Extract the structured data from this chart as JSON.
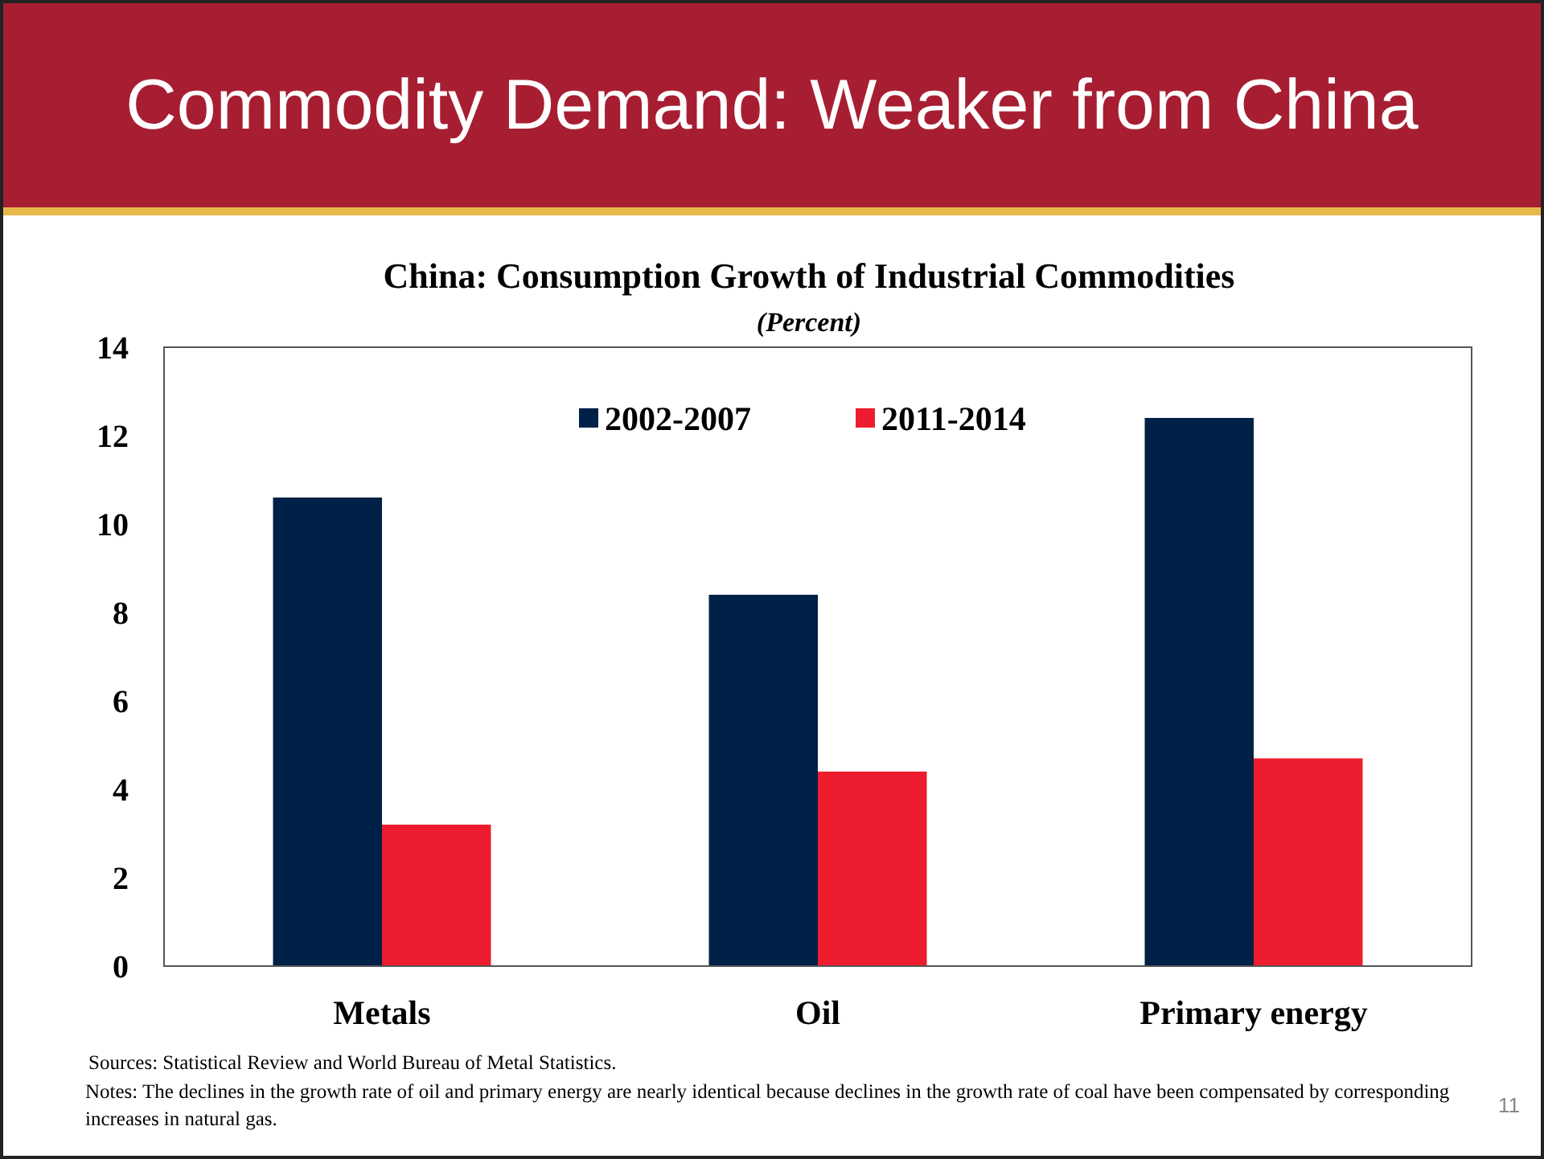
{
  "chart_data": {
    "type": "bar",
    "title": "China: Consumption Growth of Industrial Commodities",
    "subtitle": "(Percent)",
    "categories": [
      "Metals",
      "Oil",
      "Primary energy"
    ],
    "series": [
      {
        "name": "2002-2007",
        "color": "#002147",
        "values": [
          10.6,
          8.4,
          12.4
        ]
      },
      {
        "name": "2011-2014",
        "color": "#ed1c2e",
        "values": [
          3.2,
          4.4,
          4.7
        ]
      }
    ],
    "ylim": [
      0,
      14
    ],
    "yticks": [
      0,
      2,
      4,
      6,
      8,
      10,
      12,
      14
    ],
    "grid": false,
    "legend": "top",
    "annotations": [
      "Commodity Demand: Weaker from China",
      "Sources: Statistical Review and World Bureau of Metal Statistics.",
      "Notes: The declines in the growth rate of oil and primary energy are nearly identical because declines in the growth rate of coal have been compensated by corresponding increases in natural gas.",
      "11"
    ]
  }
}
